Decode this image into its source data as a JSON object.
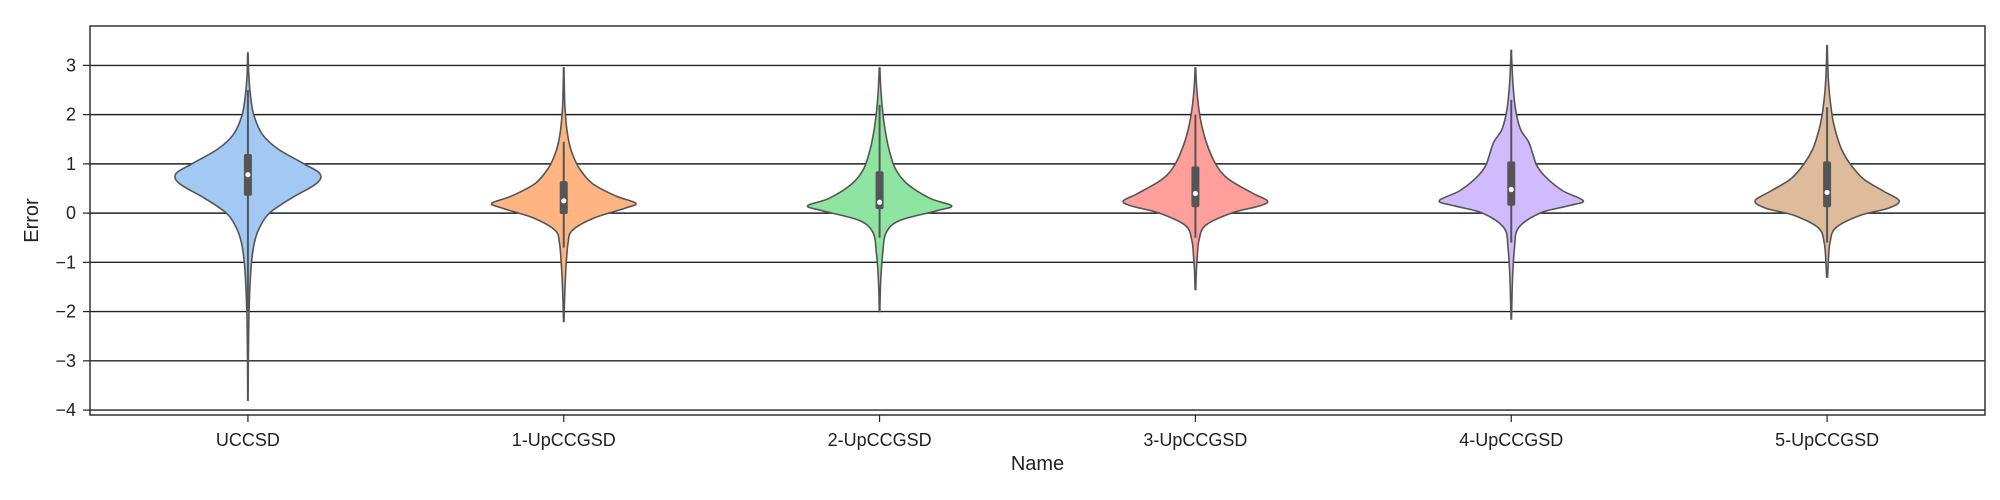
{
  "chart_data": {
    "type": "violin",
    "xlabel": "Name",
    "ylabel": "Error",
    "ylim": [
      -4.1,
      3.8
    ],
    "yticks": [
      3,
      2,
      1,
      0,
      -1,
      -2,
      -3,
      -4
    ],
    "ytick_labels": [
      "3",
      "2",
      "1",
      "0",
      "−1",
      "−2",
      "−3",
      "−4"
    ],
    "grid": "horizontal",
    "categories": [
      "UCCSD",
      "1-UpCCGSD",
      "2-UpCCGSD",
      "3-UpCCGSD",
      "4-UpCCGSD",
      "5-UpCCGSD"
    ],
    "colors": [
      "#a1c9f4",
      "#ffb482",
      "#8de5a1",
      "#ff9f9b",
      "#d0bbff",
      "#debb9b"
    ],
    "series": [
      {
        "category": "UCCSD",
        "min": -3.8,
        "q1": 0.35,
        "median": 0.78,
        "q3": 1.2,
        "max": 3.25,
        "whisker_low": -2.0,
        "whisker_high": 2.5,
        "density": [
          [
            -3.8,
            0.003
          ],
          [
            -3.0,
            0.006
          ],
          [
            -2.2,
            0.012
          ],
          [
            -1.6,
            0.025
          ],
          [
            -1.0,
            0.05
          ],
          [
            -0.6,
            0.09
          ],
          [
            -0.3,
            0.16
          ],
          [
            0.0,
            0.3
          ],
          [
            0.3,
            0.6
          ],
          [
            0.6,
            0.95
          ],
          [
            0.8,
            1.0
          ],
          [
            1.0,
            0.78
          ],
          [
            1.3,
            0.42
          ],
          [
            1.6,
            0.2
          ],
          [
            2.0,
            0.08
          ],
          [
            2.4,
            0.035
          ],
          [
            2.8,
            0.012
          ],
          [
            3.25,
            0.003
          ]
        ]
      },
      {
        "category": "1-UpCCGSD",
        "min": -2.2,
        "q1": -0.02,
        "median": 0.25,
        "q3": 0.65,
        "max": 2.95,
        "whisker_low": -0.7,
        "whisker_high": 1.45,
        "density": [
          [
            -2.2,
            0.004
          ],
          [
            -1.8,
            0.01
          ],
          [
            -1.4,
            0.02
          ],
          [
            -1.0,
            0.035
          ],
          [
            -0.6,
            0.06
          ],
          [
            -0.35,
            0.12
          ],
          [
            -0.1,
            0.42
          ],
          [
            0.1,
            0.85
          ],
          [
            0.2,
            1.0
          ],
          [
            0.35,
            0.72
          ],
          [
            0.6,
            0.4
          ],
          [
            0.9,
            0.22
          ],
          [
            1.2,
            0.12
          ],
          [
            1.5,
            0.065
          ],
          [
            1.8,
            0.035
          ],
          [
            2.2,
            0.015
          ],
          [
            2.6,
            0.007
          ],
          [
            2.95,
            0.003
          ]
        ]
      },
      {
        "category": "2-UpCCGSD",
        "min": -2.0,
        "q1": 0.08,
        "median": 0.22,
        "q3": 0.85,
        "max": 2.95,
        "whisker_low": -0.5,
        "whisker_high": 2.2,
        "density": [
          [
            -2.0,
            0.004
          ],
          [
            -1.6,
            0.01
          ],
          [
            -1.2,
            0.022
          ],
          [
            -0.8,
            0.045
          ],
          [
            -0.4,
            0.09
          ],
          [
            -0.15,
            0.28
          ],
          [
            0.05,
            0.8
          ],
          [
            0.15,
            1.0
          ],
          [
            0.3,
            0.7
          ],
          [
            0.6,
            0.38
          ],
          [
            0.9,
            0.22
          ],
          [
            1.3,
            0.13
          ],
          [
            1.7,
            0.075
          ],
          [
            2.1,
            0.04
          ],
          [
            2.5,
            0.018
          ],
          [
            2.95,
            0.004
          ]
        ]
      },
      {
        "category": "3-UpCCGSD",
        "min": -1.55,
        "q1": 0.12,
        "median": 0.4,
        "q3": 0.95,
        "max": 2.95,
        "whisker_low": -0.5,
        "whisker_high": 2.0,
        "density": [
          [
            -1.55,
            0.005
          ],
          [
            -1.2,
            0.012
          ],
          [
            -0.9,
            0.025
          ],
          [
            -0.55,
            0.05
          ],
          [
            -0.25,
            0.14
          ],
          [
            0.0,
            0.5
          ],
          [
            0.15,
            0.9
          ],
          [
            0.25,
            1.0
          ],
          [
            0.4,
            0.8
          ],
          [
            0.7,
            0.45
          ],
          [
            1.0,
            0.28
          ],
          [
            1.4,
            0.16
          ],
          [
            1.8,
            0.085
          ],
          [
            2.2,
            0.04
          ],
          [
            2.6,
            0.015
          ],
          [
            2.95,
            0.004
          ]
        ]
      },
      {
        "category": "4-UpCCGSD",
        "min": -2.15,
        "q1": 0.15,
        "median": 0.48,
        "q3": 1.05,
        "max": 3.3,
        "whisker_low": -0.6,
        "whisker_high": 2.3,
        "density": [
          [
            -2.15,
            0.004
          ],
          [
            -1.7,
            0.01
          ],
          [
            -1.2,
            0.022
          ],
          [
            -0.7,
            0.045
          ],
          [
            -0.3,
            0.1
          ],
          [
            0.0,
            0.4
          ],
          [
            0.15,
            0.8
          ],
          [
            0.25,
            1.0
          ],
          [
            0.45,
            0.72
          ],
          [
            0.7,
            0.5
          ],
          [
            0.95,
            0.36
          ],
          [
            1.2,
            0.3
          ],
          [
            1.45,
            0.24
          ],
          [
            1.7,
            0.13
          ],
          [
            2.1,
            0.06
          ],
          [
            2.6,
            0.025
          ],
          [
            3.0,
            0.01
          ],
          [
            3.3,
            0.003
          ]
        ]
      },
      {
        "category": "5-UpCCGSD",
        "min": -1.3,
        "q1": 0.12,
        "median": 0.42,
        "q3": 1.05,
        "max": 3.4,
        "whisker_low": -0.6,
        "whisker_high": 2.15,
        "density": [
          [
            -1.3,
            0.006
          ],
          [
            -0.95,
            0.018
          ],
          [
            -0.6,
            0.04
          ],
          [
            -0.3,
            0.12
          ],
          [
            -0.05,
            0.45
          ],
          [
            0.1,
            0.85
          ],
          [
            0.25,
            1.0
          ],
          [
            0.45,
            0.78
          ],
          [
            0.7,
            0.5
          ],
          [
            1.0,
            0.32
          ],
          [
            1.3,
            0.2
          ],
          [
            1.6,
            0.13
          ],
          [
            1.9,
            0.08
          ],
          [
            2.2,
            0.05
          ],
          [
            2.5,
            0.028
          ],
          [
            2.9,
            0.012
          ],
          [
            3.4,
            0.003
          ]
        ]
      }
    ]
  }
}
